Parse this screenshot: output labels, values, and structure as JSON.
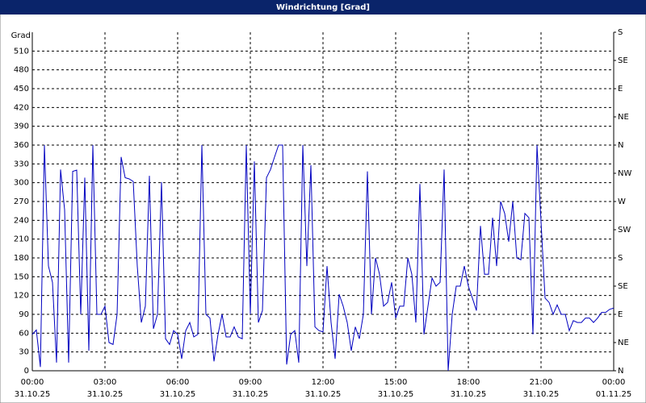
{
  "chart_data": {
    "type": "line",
    "title": "Windrichtung [Grad]",
    "ylabel": "Grad",
    "x": [
      "31.10.25 00:00",
      "31.10.25 00:10",
      "31.10.25 00:20",
      "31.10.25 00:30",
      "31.10.25 00:40",
      "31.10.25 00:50",
      "31.10.25 01:00",
      "31.10.25 01:10",
      "31.10.25 01:20",
      "31.10.25 01:30",
      "31.10.25 01:40",
      "31.10.25 01:50",
      "31.10.25 02:00",
      "31.10.25 02:10",
      "31.10.25 02:20",
      "31.10.25 02:30",
      "31.10.25 02:40",
      "31.10.25 02:50",
      "31.10.25 03:00",
      "31.10.25 03:10",
      "31.10.25 03:20",
      "31.10.25 03:30",
      "31.10.25 03:40",
      "31.10.25 03:50",
      "31.10.25 04:00",
      "31.10.25 04:10",
      "31.10.25 04:20",
      "31.10.25 04:30",
      "31.10.25 04:40",
      "31.10.25 04:50",
      "31.10.25 05:00",
      "31.10.25 05:10",
      "31.10.25 05:20",
      "31.10.25 05:30",
      "31.10.25 05:40",
      "31.10.25 05:50",
      "31.10.25 06:00",
      "31.10.25 06:10",
      "31.10.25 06:20",
      "31.10.25 06:30",
      "31.10.25 06:40",
      "31.10.25 06:50",
      "31.10.25 07:00",
      "31.10.25 07:10",
      "31.10.25 07:20",
      "31.10.25 07:30",
      "31.10.25 07:40",
      "31.10.25 07:50",
      "31.10.25 08:00",
      "31.10.25 08:10",
      "31.10.25 08:20",
      "31.10.25 08:30",
      "31.10.25 08:40",
      "31.10.25 08:50",
      "31.10.25 09:00",
      "31.10.25 09:10",
      "31.10.25 09:20",
      "31.10.25 09:30",
      "31.10.25 09:40",
      "31.10.25 09:50",
      "31.10.25 10:00",
      "31.10.25 10:10",
      "31.10.25 10:20",
      "31.10.25 10:30",
      "31.10.25 10:40",
      "31.10.25 10:50",
      "31.10.25 11:00",
      "31.10.25 11:10",
      "31.10.25 11:20",
      "31.10.25 11:30",
      "31.10.25 11:40",
      "31.10.25 11:50",
      "31.10.25 12:00",
      "31.10.25 12:10",
      "31.10.25 12:20",
      "31.10.25 12:30",
      "31.10.25 12:40",
      "31.10.25 12:50",
      "31.10.25 13:00",
      "31.10.25 13:10",
      "31.10.25 13:20",
      "31.10.25 13:30",
      "31.10.25 13:40",
      "31.10.25 13:50",
      "31.10.25 14:00",
      "31.10.25 14:10",
      "31.10.25 14:20",
      "31.10.25 14:30",
      "31.10.25 14:40",
      "31.10.25 14:50",
      "31.10.25 15:00",
      "31.10.25 15:10",
      "31.10.25 15:20",
      "31.10.25 15:30",
      "31.10.25 15:40",
      "31.10.25 15:50",
      "31.10.25 16:00",
      "31.10.25 16:10",
      "31.10.25 16:20",
      "31.10.25 16:30",
      "31.10.25 16:40",
      "31.10.25 16:50",
      "31.10.25 17:00",
      "31.10.25 17:10",
      "31.10.25 17:20",
      "31.10.25 17:30",
      "31.10.25 17:40",
      "31.10.25 17:50",
      "31.10.25 18:00",
      "31.10.25 18:10",
      "31.10.25 18:20",
      "31.10.25 18:30",
      "31.10.25 18:40",
      "31.10.25 18:50",
      "31.10.25 19:00",
      "31.10.25 19:10",
      "31.10.25 19:20",
      "31.10.25 19:30",
      "31.10.25 19:40",
      "31.10.25 19:50",
      "31.10.25 20:00",
      "31.10.25 20:10",
      "31.10.25 20:20",
      "31.10.25 20:30",
      "31.10.25 20:40",
      "31.10.25 20:50",
      "31.10.25 21:00",
      "31.10.25 21:10",
      "31.10.25 21:20",
      "31.10.25 21:30",
      "31.10.25 21:40",
      "31.10.25 21:50",
      "31.10.25 22:00",
      "31.10.25 22:10",
      "31.10.25 22:20",
      "31.10.25 22:30",
      "31.10.25 22:40",
      "31.10.25 22:50",
      "31.10.25 23:00",
      "31.10.25 23:10",
      "31.10.25 23:20",
      "31.10.25 23:30",
      "31.10.25 23:40",
      "31.10.25 23:50",
      "01.11.25 00:00"
    ],
    "values": [
      58,
      65,
      6,
      360,
      167,
      141,
      13,
      321,
      257,
      13,
      318,
      320,
      90,
      308,
      32,
      360,
      90,
      90,
      103,
      45,
      42,
      90,
      341,
      308,
      306,
      302,
      167,
      77,
      103,
      311,
      67,
      90,
      301,
      51,
      42,
      64,
      58,
      19,
      64,
      77,
      54,
      58,
      360,
      90,
      84,
      15,
      58,
      90,
      54,
      54,
      70,
      54,
      51,
      360,
      90,
      334,
      77,
      96,
      308,
      321,
      341,
      360,
      360,
      10,
      58,
      64,
      13,
      360,
      167,
      328,
      70,
      64,
      62,
      167,
      77,
      19,
      122,
      103,
      77,
      32,
      70,
      51,
      90,
      318,
      90,
      180,
      154,
      103,
      109,
      141,
      84,
      103,
      103,
      180,
      154,
      77,
      298,
      58,
      103,
      148,
      135,
      141,
      321,
      0,
      90,
      135,
      135,
      167,
      135,
      116,
      96,
      231,
      154,
      154,
      244,
      167,
      270,
      251,
      206,
      270,
      180,
      177,
      251,
      244,
      58,
      360,
      238,
      116,
      109,
      90,
      105,
      90,
      90,
      64,
      80,
      77,
      77,
      84,
      84,
      77,
      84,
      93,
      93,
      98,
      100
    ],
    "color": "#0000c0",
    "xlim": [
      "31.10.25 00:00",
      "01.11.25 00:00"
    ],
    "xticks": [
      {
        "value": "31.10.25 00:00",
        "label": "00:00",
        "date": "31.10.25"
      },
      {
        "value": "31.10.25 03:00",
        "label": "03:00",
        "date": "31.10.25"
      },
      {
        "value": "31.10.25 06:00",
        "label": "06:00",
        "date": "31.10.25"
      },
      {
        "value": "31.10.25 09:00",
        "label": "09:00",
        "date": "31.10.25"
      },
      {
        "value": "31.10.25 12:00",
        "label": "12:00",
        "date": "31.10.25"
      },
      {
        "value": "31.10.25 15:00",
        "label": "15:00",
        "date": "31.10.25"
      },
      {
        "value": "31.10.25 18:00",
        "label": "18:00",
        "date": "31.10.25"
      },
      {
        "value": "31.10.25 21:00",
        "label": "21:00",
        "date": "31.10.25"
      },
      {
        "value": "01.11.25 00:00",
        "label": "00:00",
        "date": "01.11.25"
      }
    ],
    "ylim": [
      0,
      540
    ],
    "yticks": [
      0,
      30,
      60,
      90,
      120,
      150,
      180,
      210,
      240,
      270,
      300,
      330,
      360,
      390,
      420,
      450,
      480,
      510
    ],
    "y2lim": [
      0,
      540
    ],
    "y2ticks": [
      {
        "value": 0,
        "label": "N"
      },
      {
        "value": 45,
        "label": "NE"
      },
      {
        "value": 90,
        "label": "E"
      },
      {
        "value": 135,
        "label": "SE"
      },
      {
        "value": 180,
        "label": "S"
      },
      {
        "value": 225,
        "label": "SW"
      },
      {
        "value": 270,
        "label": "W"
      },
      {
        "value": 315,
        "label": "NW"
      },
      {
        "value": 360,
        "label": "N"
      },
      {
        "value": 405,
        "label": "NE"
      },
      {
        "value": 450,
        "label": "E"
      },
      {
        "value": 495,
        "label": "SE"
      },
      {
        "value": 540,
        "label": "S"
      }
    ],
    "grid": true
  }
}
